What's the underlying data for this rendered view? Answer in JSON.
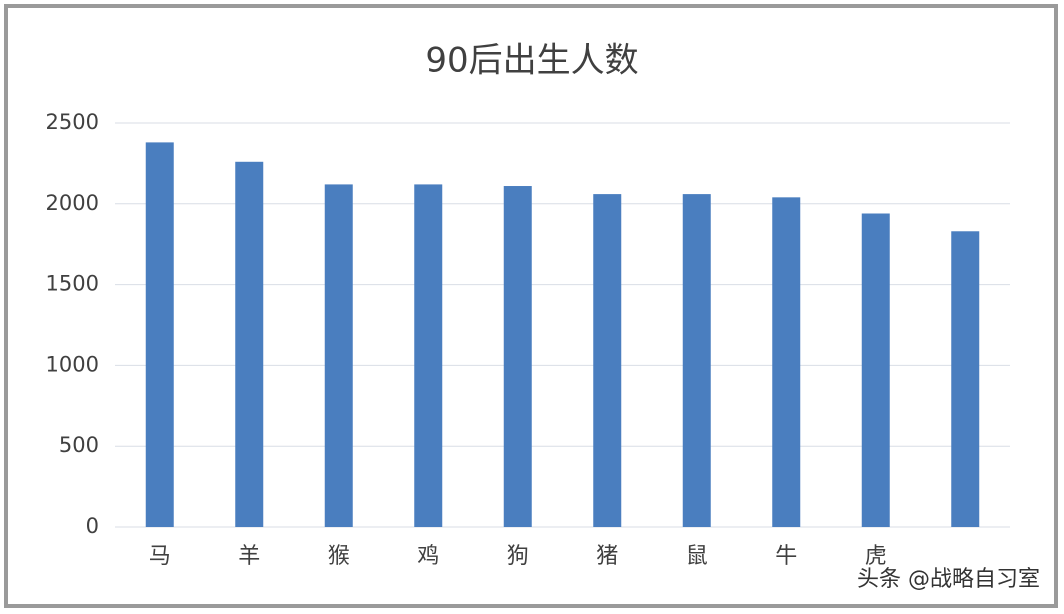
{
  "chart_data": {
    "type": "bar",
    "title": "90后出生人数",
    "categories": [
      "马",
      "羊",
      "猴",
      "鸡",
      "狗",
      "猪",
      "鼠",
      "牛",
      "虎",
      null
    ],
    "values": [
      2380,
      2260,
      2120,
      2120,
      2110,
      2060,
      2060,
      2040,
      1940,
      1830
    ],
    "color": "#4a7ebf",
    "ylim": [
      0,
      2500
    ],
    "yticks": [
      0,
      500,
      1000,
      1500,
      2000,
      2500
    ],
    "grid": true,
    "watermark": "头条 @战略自习室"
  }
}
